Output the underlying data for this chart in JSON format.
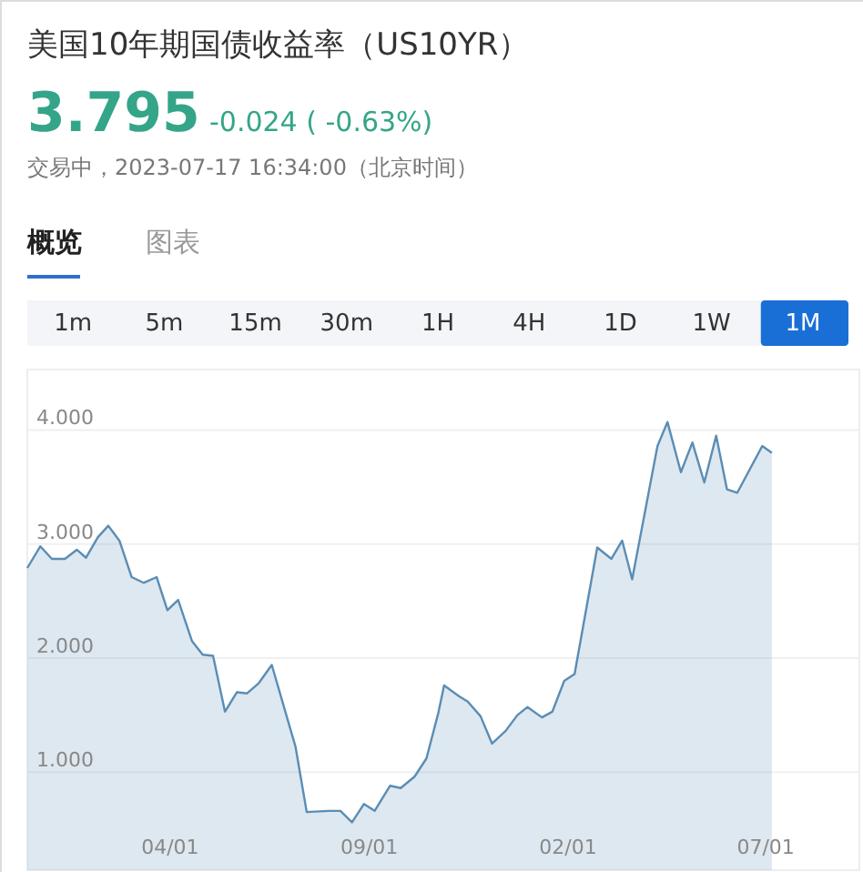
{
  "chart_data": {
    "type": "area",
    "title": "美国10年期国债收益率（US10YR）",
    "subtitle": "交易中，2023-07-17 16:34:00（北京时间）",
    "annotations": [
      "3.795",
      "-0.024 ( -0.63%)",
      "概览",
      "图表",
      "1m",
      "5m",
      "15m",
      "30m",
      "1H",
      "4H",
      "1D",
      "1W",
      "1M"
    ],
    "x": [
      "2018-03-25",
      "2018-04-28",
      "2018-05-28",
      "2018-07-01",
      "2018-08-01",
      "2018-08-25",
      "2018-09-25",
      "2018-10-22",
      "2018-11-20",
      "2018-12-22",
      "2019-01-22",
      "2019-02-25",
      "2019-03-25",
      "2019-04-22",
      "2019-05-28",
      "2019-06-25",
      "2019-07-22",
      "2019-08-22",
      "2019-09-22",
      "2019-10-18",
      "2019-11-18",
      "2019-12-22",
      "2020-02-22",
      "2020-03-22",
      "2020-05-18",
      "2020-06-18",
      "2020-07-18",
      "2020-08-18",
      "2020-09-15",
      "2020-10-25",
      "2020-11-22",
      "2020-12-28",
      "2021-01-28",
      "2021-02-28",
      "2021-03-15",
      "2021-04-25",
      "2021-05-15",
      "2021-06-18",
      "2021-07-18",
      "2021-08-22",
      "2021-09-22",
      "2021-10-18",
      "2021-11-25",
      "2021-12-22",
      "2022-01-22",
      "2022-02-18",
      "2022-04-18",
      "2022-05-25",
      "2022-06-22",
      "2022-07-18",
      "2022-09-22",
      "2022-10-18",
      "2022-11-22",
      "2022-12-22",
      "2023-01-22",
      "2023-02-22",
      "2023-03-22",
      "2023-04-18",
      "2023-06-22",
      "2023-07-17"
    ],
    "series": [
      {
        "color": "#5a8db5",
        "values": [
          2.79,
          2.98,
          2.87,
          2.87,
          2.95,
          2.88,
          3.06,
          3.16,
          3.03,
          2.71,
          2.66,
          2.71,
          2.42,
          2.51,
          2.15,
          2.03,
          2.02,
          1.53,
          1.7,
          1.69,
          1.78,
          1.94,
          1.22,
          0.65,
          0.66,
          0.66,
          0.56,
          0.72,
          0.66,
          0.88,
          0.86,
          0.96,
          1.12,
          1.52,
          1.76,
          1.66,
          1.62,
          1.49,
          1.25,
          1.36,
          1.5,
          1.57,
          1.48,
          1.53,
          1.8,
          1.86,
          2.97,
          2.87,
          3.03,
          2.69,
          3.86,
          4.07,
          3.63,
          3.89,
          3.54,
          3.95,
          3.48,
          3.45,
          3.86,
          3.8
        ]
      }
    ],
    "xlim": [
      "2018-03-25",
      "2024-03-01"
    ],
    "ylim": [
      0.14,
      4.53
    ],
    "xticks": [
      {
        "value": "2019-04-01",
        "label": "04/01"
      },
      {
        "value": "2020-09-01",
        "label": "09/01"
      },
      {
        "value": "2022-02-01",
        "label": "02/01"
      },
      {
        "value": "2023-07-01",
        "label": "07/01"
      }
    ],
    "yticks": [
      {
        "value": 1,
        "label": "1.000"
      },
      {
        "value": 2,
        "label": "2.000"
      },
      {
        "value": 3,
        "label": "3.000"
      },
      {
        "value": 4,
        "label": "4.000"
      }
    ],
    "grid": "y",
    "line_style": "solid"
  }
}
